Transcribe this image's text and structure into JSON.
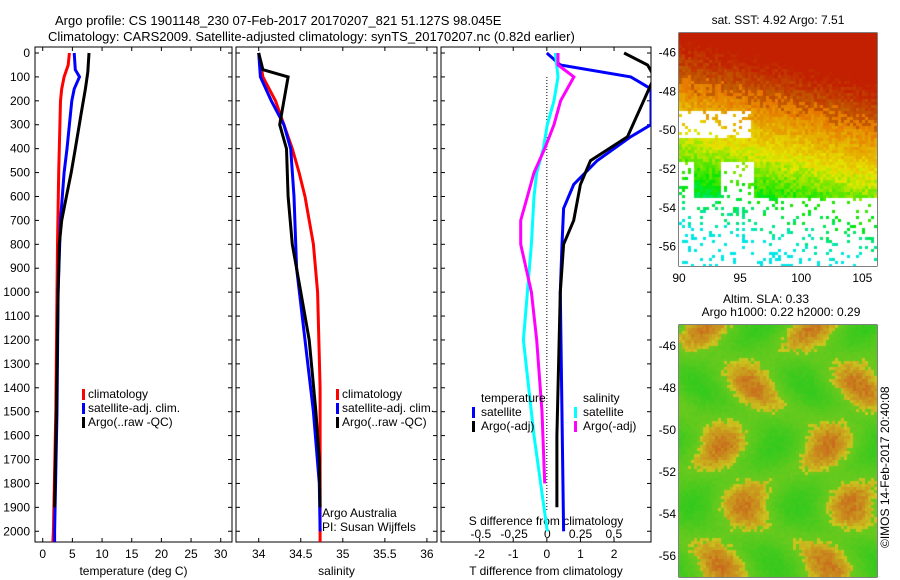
{
  "title_line1": "Argo profile: CS 1901148_230 07-Feb-2017 20170207_821 51.127S 98.045E",
  "title_line2": "Climatology: CARS2009. Satellite-adjusted climatology: synTS_20170207.nc (0.82d earlier)",
  "colors": {
    "climatology": "#ff0000",
    "satellite": "#0000ff",
    "argo": "#000000",
    "sal_sat": "#00ffff",
    "sal_argo": "#ff00ff"
  },
  "chart_data": [
    {
      "type": "line",
      "title": "",
      "xlabel": "temperature (deg C)",
      "ylabel": "",
      "xlim": [
        -1.3,
        31.9
      ],
      "ylim": [
        2070,
        0
      ],
      "xticks": [
        0,
        5,
        10,
        15,
        20,
        25,
        30
      ],
      "yticks": [
        0,
        100,
        200,
        300,
        400,
        500,
        600,
        700,
        800,
        900,
        1000,
        1100,
        1200,
        1300,
        1400,
        1500,
        1600,
        1700,
        1800,
        1900,
        2000
      ],
      "legend": [
        "climatology",
        "satellite-adj. clim.",
        "Argo(..raw -QC)"
      ],
      "series": [
        {
          "name": "climatology",
          "color": "#ff0000",
          "depth": [
            0,
            50,
            100,
            150,
            200,
            300,
            500,
            800,
            1000,
            1500,
            2000,
            2050
          ],
          "values": [
            4.5,
            4.3,
            3.6,
            3.2,
            3.0,
            2.9,
            2.7,
            2.5,
            2.4,
            2.2,
            1.8,
            1.7
          ]
        },
        {
          "name": "satellite-adj. clim.",
          "color": "#0000ff",
          "depth": [
            0,
            70,
            100,
            150,
            200,
            300,
            400,
            500,
            700,
            1000,
            1500,
            2000,
            2050
          ],
          "values": [
            5.3,
            5.5,
            6.2,
            5.3,
            4.9,
            4.5,
            4.1,
            3.6,
            3.0,
            2.6,
            2.4,
            2.0,
            2.0
          ]
        },
        {
          "name": "Argo(..raw -QC)",
          "color": "#000000",
          "depth": [
            0,
            80,
            150,
            250,
            400,
            500,
            600,
            700,
            800,
            1000,
            1500,
            1900
          ],
          "values": [
            7.8,
            7.6,
            7.2,
            6.5,
            5.5,
            4.8,
            4.0,
            3.2,
            2.8,
            2.6,
            2.3,
            2.0
          ]
        }
      ]
    },
    {
      "type": "line",
      "xlabel": "salinity",
      "xlim": [
        33.73,
        36.12
      ],
      "ylim": [
        2070,
        0
      ],
      "xticks": [
        34,
        34.5,
        35,
        35.5,
        36
      ],
      "legend": [
        "climatology",
        "satellite-adj. clim.",
        "Argo(..raw -QC)"
      ],
      "annotations": [
        "Argo Australia",
        "PI: Susan Wijffels"
      ],
      "series": [
        {
          "name": "climatology",
          "color": "#ff0000",
          "depth": [
            0,
            100,
            200,
            300,
            400,
            500,
            600,
            700,
            800,
            1000,
            1400,
            2050
          ],
          "values": [
            34.0,
            34.05,
            34.2,
            34.3,
            34.4,
            34.48,
            34.55,
            34.6,
            34.65,
            34.7,
            34.73,
            34.73
          ]
        },
        {
          "name": "satellite-adj. clim.",
          "color": "#0000ff",
          "depth": [
            0,
            100,
            200,
            300,
            400,
            600,
            900,
            1200,
            1500,
            1800,
            2000
          ],
          "values": [
            34.0,
            34.02,
            34.15,
            34.3,
            34.38,
            34.42,
            34.45,
            34.55,
            34.65,
            34.72,
            34.73
          ]
        },
        {
          "name": "Argo(..raw -QC)",
          "color": "#000000",
          "depth": [
            0,
            70,
            100,
            200,
            300,
            400,
            600,
            800,
            1000,
            1200,
            1500,
            1700,
            1900
          ],
          "values": [
            34.0,
            34.05,
            34.35,
            34.3,
            34.25,
            34.33,
            34.35,
            34.4,
            34.5,
            34.6,
            34.68,
            34.72,
            34.73
          ]
        }
      ]
    },
    {
      "type": "line",
      "xlabel": "T difference from climatology",
      "x2label": "S difference from climatology",
      "xlim": [
        -3.15,
        3.1
      ],
      "x2lim": [
        -0.8,
        0.78
      ],
      "ylim": [
        2070,
        0
      ],
      "xticks": [
        -2,
        -1,
        0,
        1,
        2
      ],
      "x2ticks": [
        "-0.5",
        "-0.25",
        "0",
        "0.25",
        "0.5"
      ],
      "legend_temperature_title": "temperature",
      "legend_salinity_title": "salinity",
      "legend": [
        "satellite",
        "Argo(-adj)",
        "satellite",
        "Argo(-adj)"
      ],
      "series": [
        {
          "name": "T satellite",
          "color": "#0000ff",
          "axis": "T",
          "depth": [
            0,
            50,
            100,
            150,
            300,
            350,
            450,
            550,
            650,
            800,
            1000,
            2000
          ],
          "values": [
            0,
            0.4,
            2.5,
            3.1,
            3.1,
            2.5,
            1.5,
            0.8,
            0.5,
            0.45,
            0.4,
            0.5
          ]
        },
        {
          "name": "T Argo(-adj)",
          "color": "#000000",
          "axis": "T",
          "depth": [
            0,
            50,
            100,
            350,
            450,
            550,
            700,
            800,
            1000,
            1600,
            1900
          ],
          "values": [
            2.3,
            3.0,
            3.2,
            2.4,
            1.3,
            1.0,
            0.8,
            0.5,
            0.4,
            0.3,
            0.3
          ]
        },
        {
          "name": "S satellite",
          "color": "#00ffff",
          "axis": "S",
          "depth": [
            0,
            100,
            200,
            300,
            400,
            500,
            600,
            800,
            1000,
            1200,
            1600,
            2000
          ],
          "values": [
            0.06,
            0.08,
            0.05,
            0,
            -0.03,
            -0.08,
            -0.1,
            -0.12,
            -0.15,
            -0.18,
            -0.1,
            0.0
          ]
        },
        {
          "name": "S Argo(-adj)",
          "color": "#ff00ff",
          "axis": "S",
          "depth": [
            0,
            50,
            100,
            200,
            300,
            400,
            500,
            600,
            700,
            800,
            1000,
            1200,
            1500,
            1800
          ],
          "values": [
            0.08,
            0.08,
            0.2,
            0.1,
            0.05,
            -0.02,
            -0.1,
            -0.15,
            -0.2,
            -0.2,
            -0.12,
            -0.08,
            -0.04,
            -0.02
          ]
        }
      ]
    },
    {
      "type": "heatmap",
      "title": "sat. SST: 4.92 Argo: 7.51",
      "xlim": [
        90,
        106.2
      ],
      "ylim": [
        -57,
        -45
      ],
      "xticks": [
        90,
        95,
        100,
        105
      ],
      "yticks": [
        -46,
        -48,
        -50,
        -52,
        -54,
        -56
      ]
    },
    {
      "type": "heatmap",
      "title_line1": "Altim. SLA: 0.33",
      "title_line2": "Argo h1000: 0.22 h2000: 0.29",
      "xlim": [
        90,
        106.2
      ],
      "ylim": [
        -57,
        -45
      ],
      "xticks": [
        90,
        95,
        100,
        105
      ],
      "yticks": [
        -46,
        -48,
        -50,
        -52,
        -54,
        -56
      ]
    }
  ],
  "credit": "©IMOS 14-Feb-2017 20:40:08"
}
